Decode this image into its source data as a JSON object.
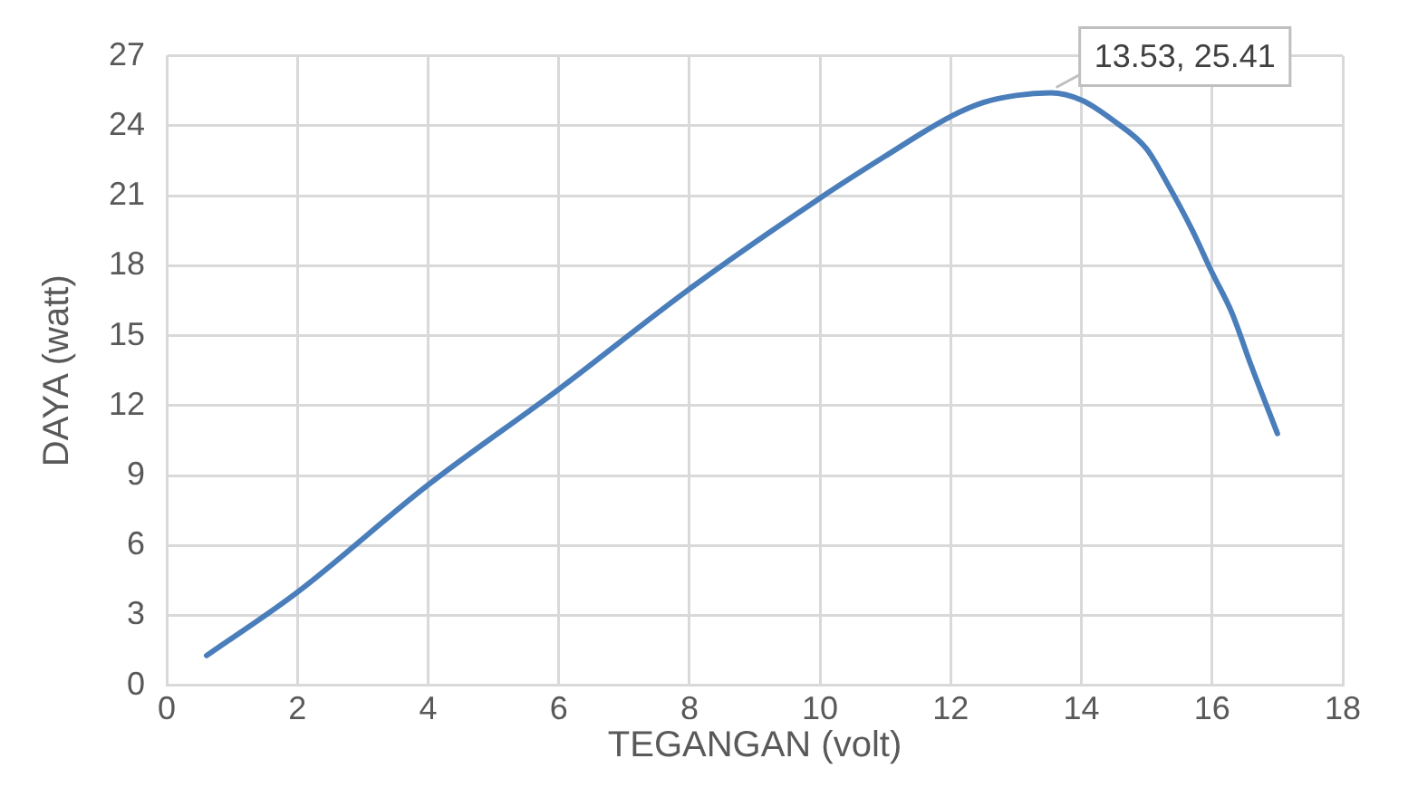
{
  "chart_data": {
    "type": "line",
    "xlabel": "TEGANGAN (volt)",
    "ylabel": "DAYA (watt)",
    "series": [
      {
        "color": "#4a7ebb",
        "x": [
          0.61,
          2,
          4,
          6,
          8,
          10,
          11,
          12,
          12.5,
          13,
          13.53,
          14,
          14.5,
          15,
          15.3,
          15.7,
          16,
          16.3,
          16.6,
          17
        ],
        "values": [
          1.28,
          4.0,
          8.6,
          12.7,
          17.0,
          20.9,
          22.7,
          24.4,
          25.0,
          25.3,
          25.41,
          25.1,
          24.2,
          23.0,
          21.6,
          19.5,
          17.7,
          16.0,
          13.7,
          10.8
        ]
      }
    ],
    "xlim": [
      0,
      18
    ],
    "xticks": [
      0,
      2,
      4,
      6,
      8,
      10,
      12,
      14,
      16,
      18
    ],
    "ylim": [
      0,
      27
    ],
    "yticks": [
      0,
      3,
      6,
      9,
      12,
      15,
      18,
      21,
      24,
      27
    ],
    "grid": true,
    "legend": false,
    "marker": "none",
    "line_style": "solid",
    "annotations": [
      {
        "text": "13.53, 25.41",
        "x": 13.53,
        "y": 25.41
      }
    ]
  }
}
